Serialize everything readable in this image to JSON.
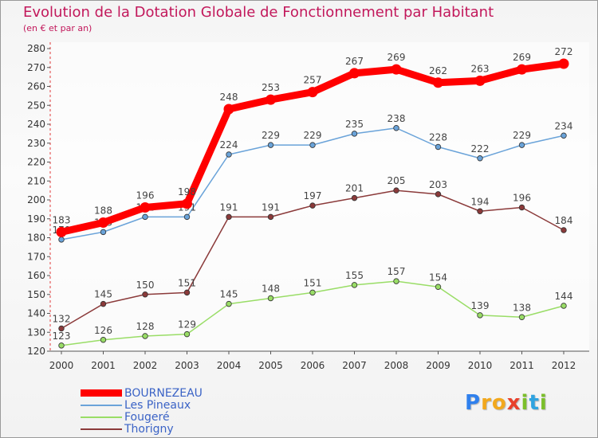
{
  "header": {
    "title": "Evolution de la Dotation Globale de Fonctionnement par Habitant",
    "subtitle": "(en € et par an)"
  },
  "logo": {
    "letters": [
      "P",
      "r",
      "o",
      "x",
      "i",
      "t",
      "i"
    ],
    "colors": [
      "#2f80ed",
      "#f2a81d",
      "#f2a81d",
      "#e8412c",
      "#7bbf2a",
      "#2fa3e0",
      "#7bbf2a"
    ]
  },
  "chart_data": {
    "type": "line",
    "title": "Evolution de la Dotation Globale de Fonctionnement par Habitant",
    "subtitle": "(en € et par an)",
    "xlabel": "",
    "ylabel": "",
    "ylim": [
      120,
      280
    ],
    "yticks": [
      120,
      130,
      140,
      150,
      160,
      170,
      180,
      190,
      200,
      210,
      220,
      230,
      240,
      250,
      260,
      270,
      280
    ],
    "grid": false,
    "legend_position": "bottom-left",
    "categories": [
      "2000",
      "2001",
      "2002",
      "2003",
      "2004",
      "2005",
      "2006",
      "2007",
      "2008",
      "2009",
      "2010",
      "2011",
      "2012"
    ],
    "series": [
      {
        "name": "BOURNEZEAU",
        "color": "#ff0000",
        "emphasis": true,
        "values": [
          183,
          188,
          196,
          198,
          248,
          253,
          257,
          267,
          269,
          262,
          263,
          269,
          272
        ]
      },
      {
        "name": "Les Pineaux",
        "color": "#6aa3d9",
        "values": [
          179,
          183,
          191,
          191,
          224,
          229,
          229,
          235,
          238,
          228,
          222,
          229,
          234
        ]
      },
      {
        "name": "Fougeré",
        "color": "#99dd66",
        "values": [
          123,
          126,
          128,
          129,
          145,
          148,
          151,
          155,
          157,
          154,
          139,
          138,
          144
        ]
      },
      {
        "name": "Thorigny",
        "color": "#8b3a3a",
        "values": [
          132,
          145,
          150,
          151,
          191,
          191,
          197,
          201,
          205,
          203,
          194,
          196,
          184
        ]
      }
    ]
  }
}
